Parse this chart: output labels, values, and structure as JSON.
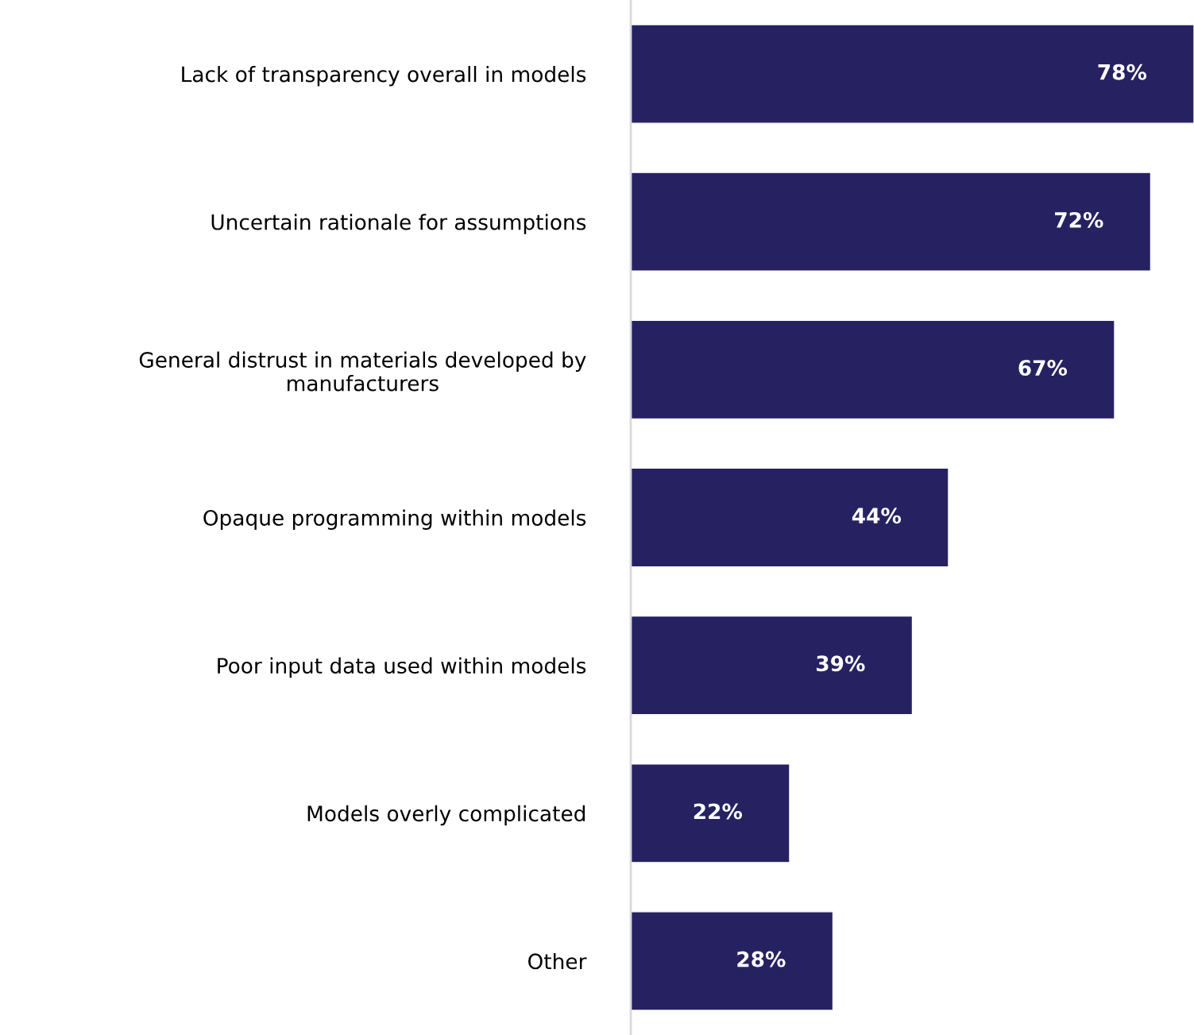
{
  "chart_data": {
    "type": "bar",
    "orientation": "horizontal",
    "categories": [
      "Lack of transparency overall in models",
      "Uncertain rationale for assumptions",
      "General distrust in materials developed by\nmanufacturers",
      "Opaque programming within models",
      "Poor input data used within models",
      "Models overly complicated",
      "Other"
    ],
    "values": [
      78,
      72,
      67,
      44,
      39,
      22,
      28
    ],
    "value_labels": [
      "78%",
      "72%",
      "67%",
      "44%",
      "39%",
      "22%",
      "28%"
    ],
    "color": "#262262",
    "grid": false,
    "legend": false
  }
}
